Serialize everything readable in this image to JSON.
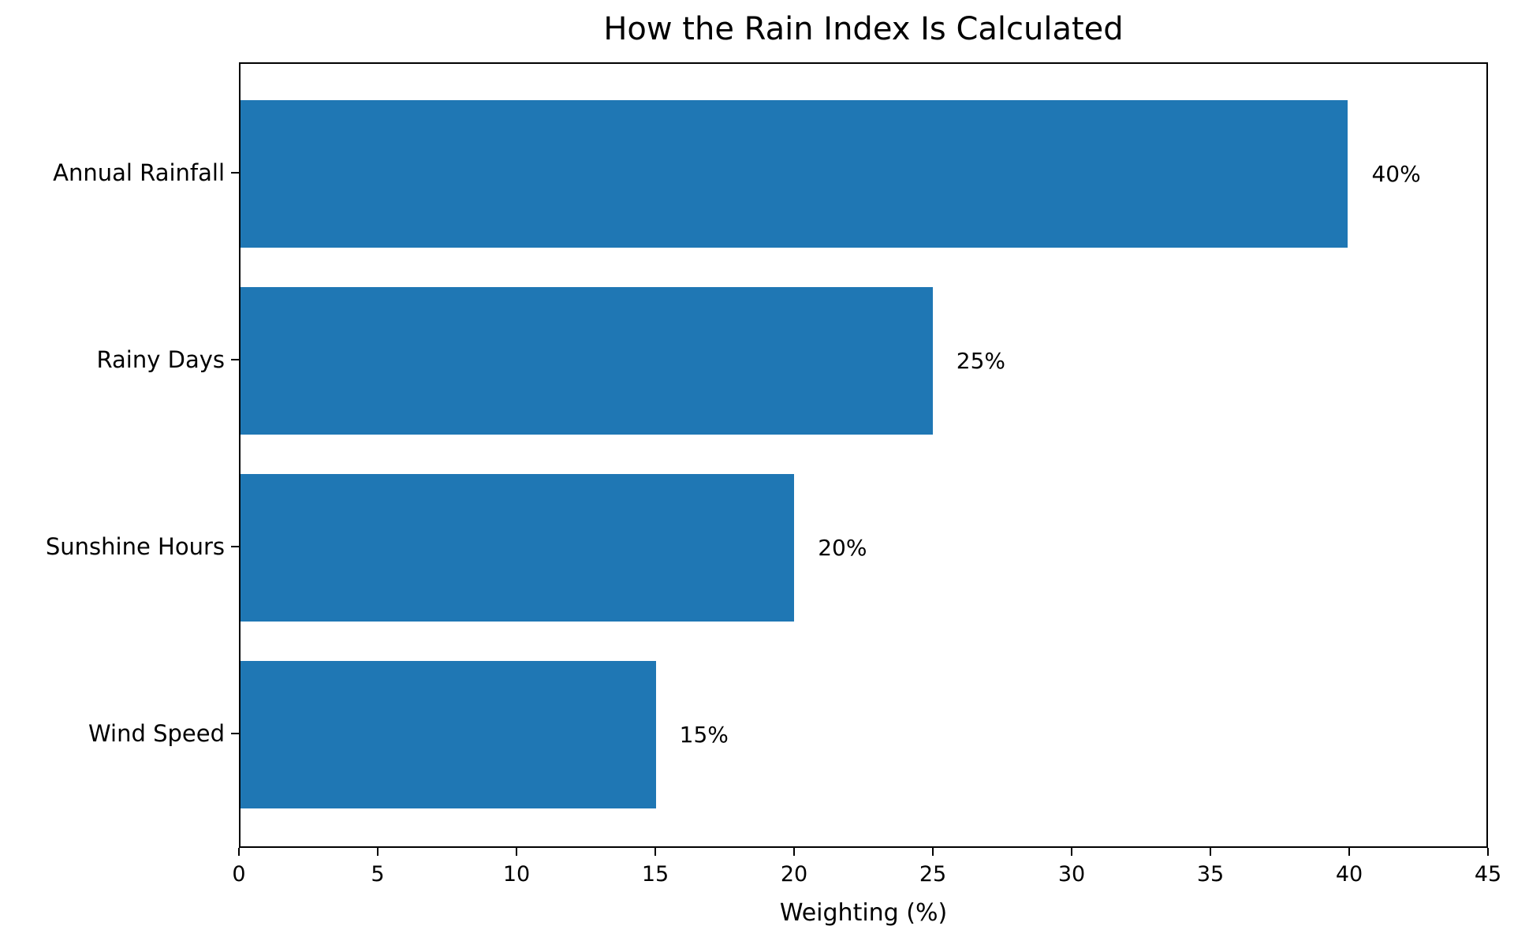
{
  "title": "How the Rain Index Is Calculated",
  "colors": {
    "bar": "#1f77b4",
    "text": "#000000",
    "spine": "#000000",
    "background": "#ffffff"
  },
  "chart_data": {
    "type": "bar",
    "orientation": "horizontal",
    "title": "How the Rain Index Is Calculated",
    "xlabel": "Weighting (%)",
    "ylabel": "",
    "categories": [
      "Annual Rainfall",
      "Rainy Days",
      "Sunshine Hours",
      "Wind Speed"
    ],
    "values": [
      40,
      25,
      20,
      15
    ],
    "value_labels": [
      "40%",
      "25%",
      "20%",
      "15%"
    ],
    "xlim": [
      0,
      45
    ],
    "xticks": [
      0,
      5,
      10,
      15,
      20,
      25,
      30,
      35,
      40,
      45
    ],
    "grid": false,
    "legend": false,
    "bar_color": "#1f77b4"
  }
}
